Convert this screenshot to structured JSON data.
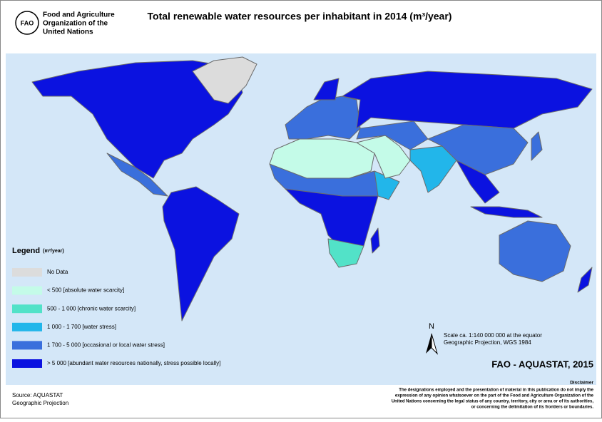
{
  "header": {
    "logo_text": "FAO",
    "organization": [
      "Food and Agriculture",
      "Organization of the",
      "United Nations"
    ],
    "title": "Total renewable water resources per inhabitant in 2014 (m³/year)"
  },
  "legend": {
    "title": "Legend",
    "unit": "(m³/year)",
    "items": [
      {
        "label": "No Data",
        "color": "#dcdcdc"
      },
      {
        "label": "< 500 [absolute water scarcity]",
        "color": "#c4fbe8"
      },
      {
        "label": "500 - 1 000 [chronic water scarcity]",
        "color": "#52e2c8"
      },
      {
        "label": "1 000 - 1 700 [water stress]",
        "color": "#22b6ea"
      },
      {
        "label": "1 700 - 5 000 [occasional or local water stress]",
        "color": "#3a6fdc"
      },
      {
        "label": "> 5 000 [abundant water resources nationally, stress possible locally]",
        "color": "#0b12e0"
      }
    ]
  },
  "north": "N",
  "scale": [
    "Scale ca. 1:140 000 000 at the equator",
    "Geographic Projection, WGS 1984"
  ],
  "credit": "FAO - AQUASTAT, 2015",
  "disclaimer": {
    "title": "Disclaimer",
    "lines": [
      "The designations employed and the presentation  of material in this publication do not imply the",
      "expression of any opinion whatsoever on the part of the Food and Agriculture Organization of the",
      "United Nations concerning the legal status of any country, territory, city or area or of its authorities,",
      "or concerning  the delimitation of its frontiers or boundaries."
    ]
  },
  "source": [
    "Source: AQUASTAT",
    "Geographic Projection"
  ]
}
